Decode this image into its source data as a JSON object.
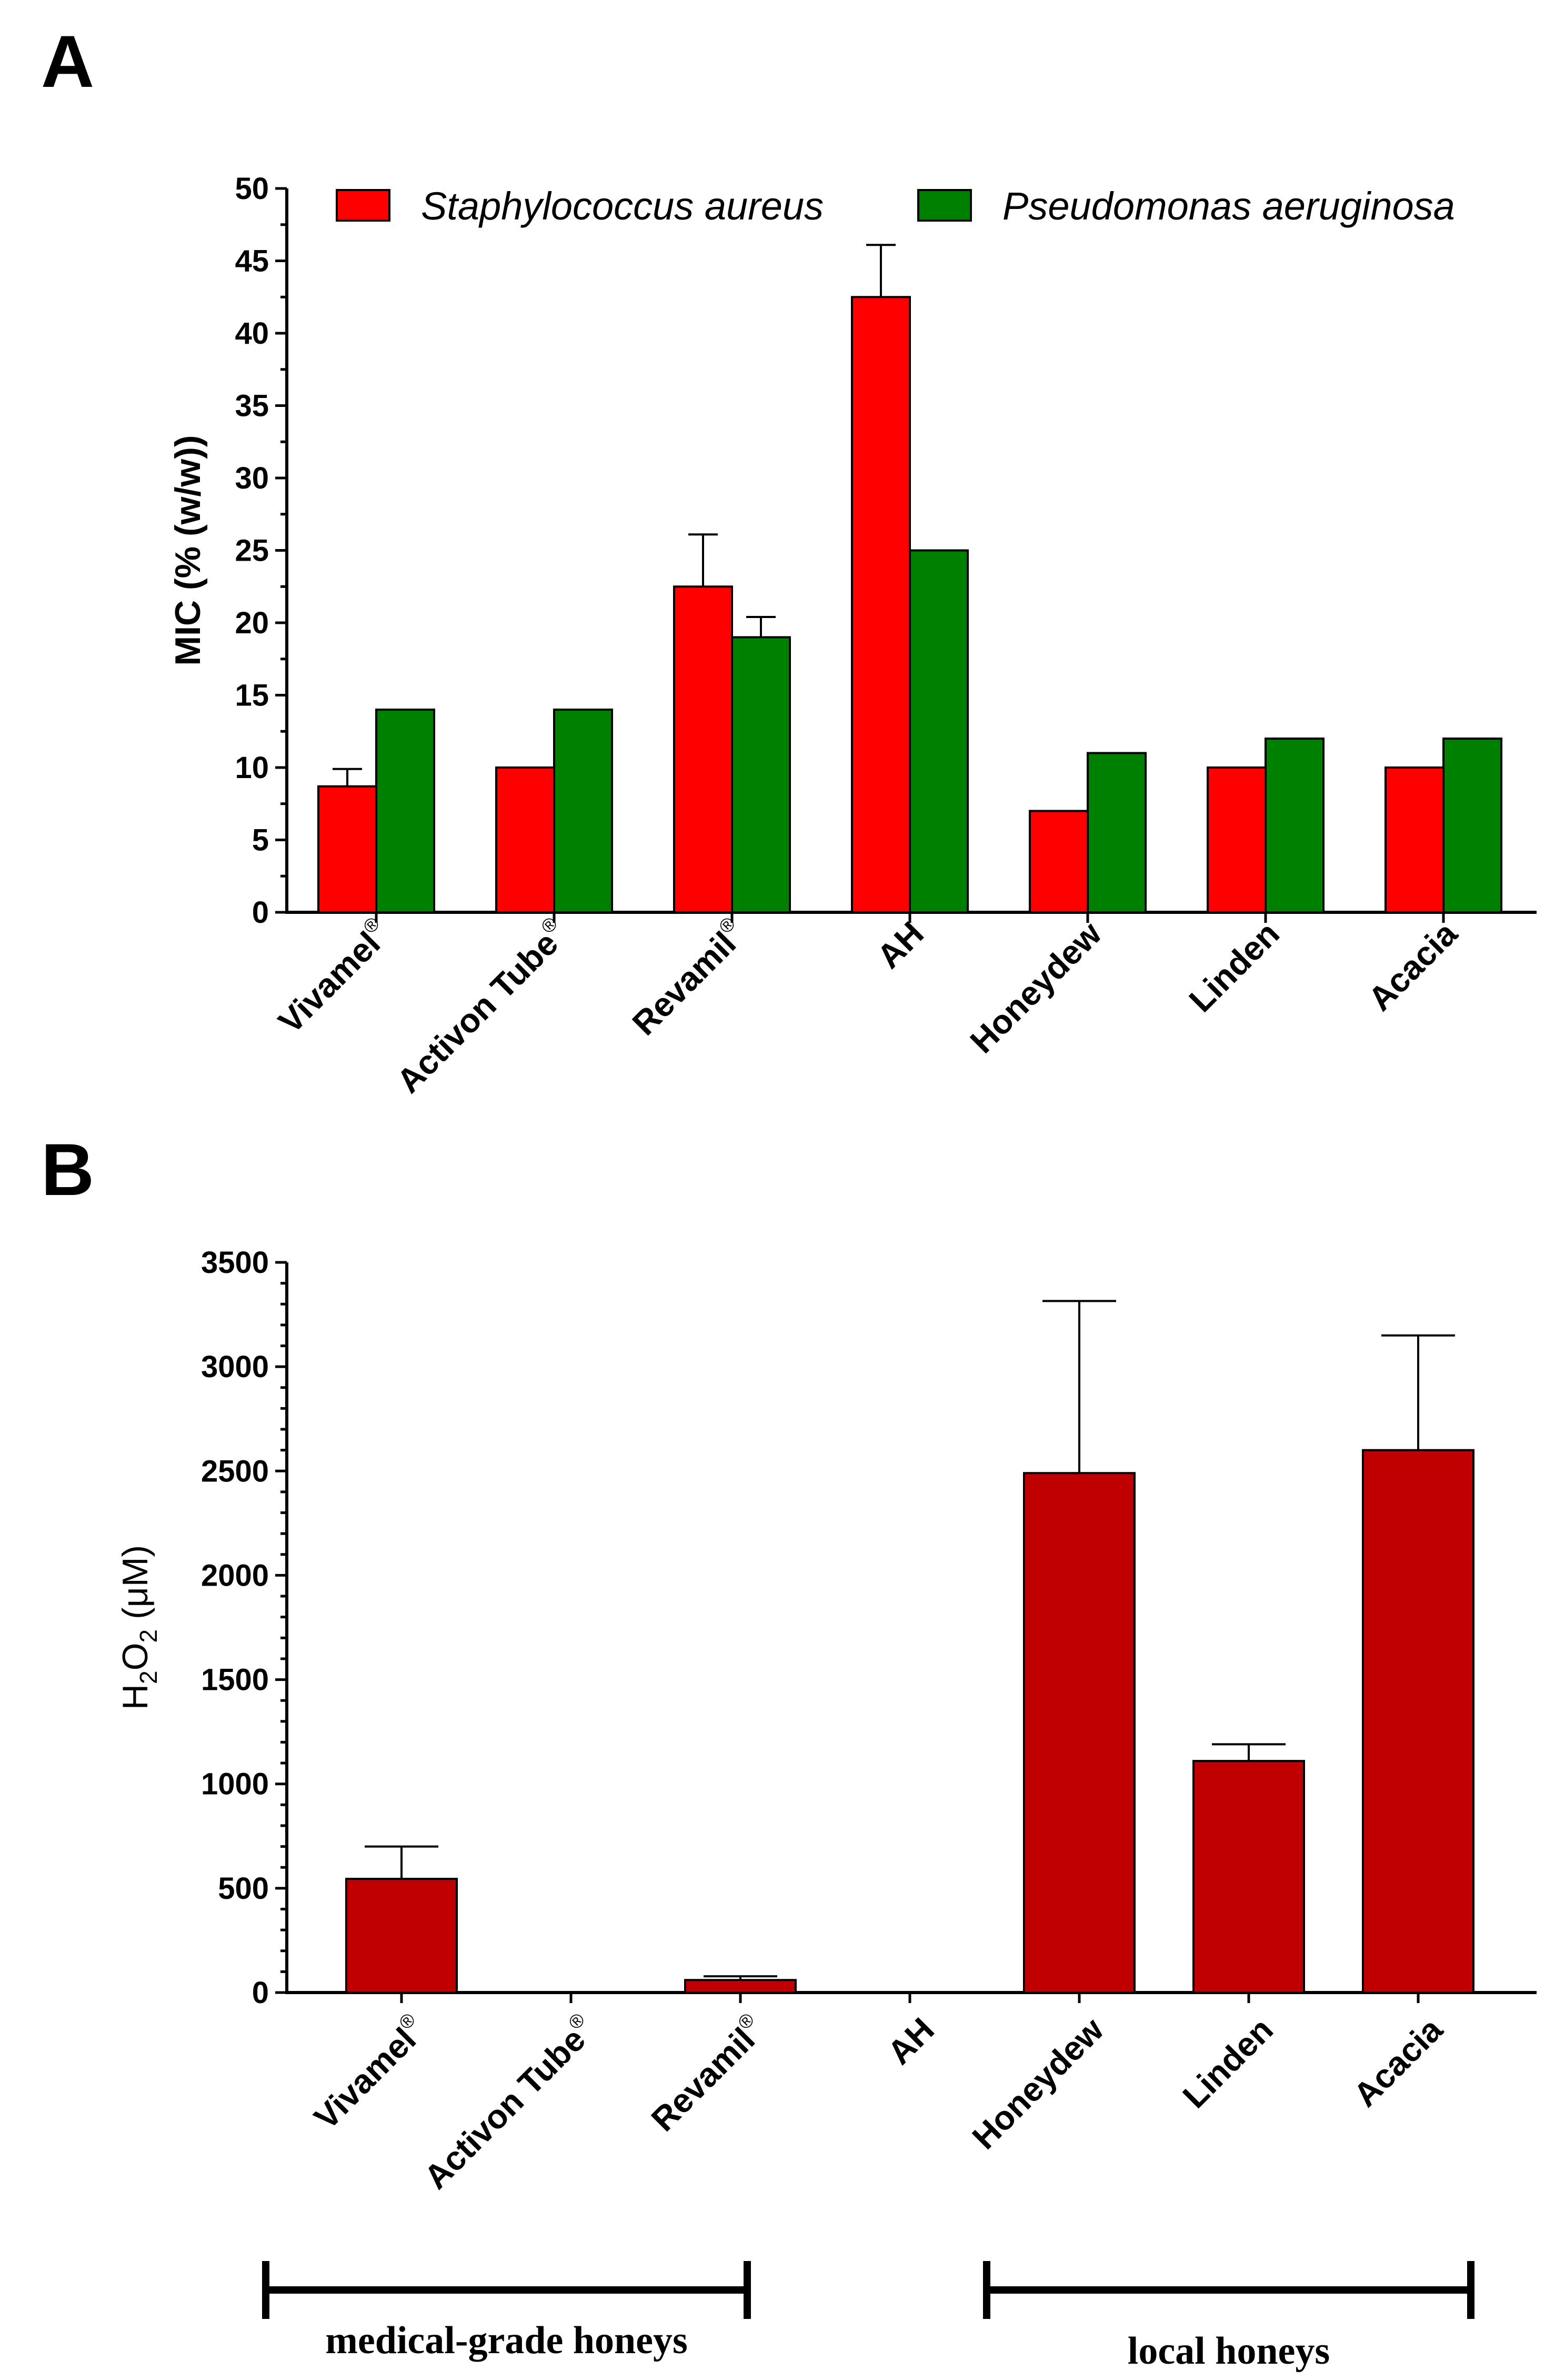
{
  "colors": {
    "staph": "#ff0000",
    "pseudo": "#008000",
    "h2o2": "#c00000",
    "ink": "#000000"
  },
  "chart_data": [
    {
      "panel": "A",
      "type": "bar",
      "title": "",
      "xlabel": "",
      "ylabel": "MIC (% (w/w))",
      "ylim": [
        0,
        50
      ],
      "yticks": [
        0,
        5,
        10,
        15,
        20,
        25,
        30,
        35,
        40,
        45,
        50
      ],
      "categories": [
        "Vivamel",
        "Activon Tube",
        "Revamil",
        "AH",
        "Honeydew",
        "Linden",
        "Acacia"
      ],
      "registered_mark": [
        true,
        true,
        true,
        false,
        false,
        false,
        false
      ],
      "registered_symbol": "®",
      "legend_position": "top",
      "series": [
        {
          "name": "Staphylococcus aureus",
          "values": [
            8.7,
            10,
            22.5,
            42.5,
            7,
            10,
            10
          ],
          "error": [
            1.2,
            0,
            3.6,
            3.6,
            0,
            0,
            0
          ]
        },
        {
          "name": "Pseudomonas aeruginosa",
          "values": [
            14,
            14,
            19,
            25,
            11,
            12,
            12
          ],
          "error": [
            0,
            0,
            1.4,
            0,
            0,
            0,
            0
          ]
        }
      ]
    },
    {
      "panel": "B",
      "type": "bar",
      "title": "",
      "xlabel": "",
      "ylabel": "H2O2 (μM)",
      "ylabel_parts": [
        "H",
        "2",
        "O",
        "2",
        " (μM)"
      ],
      "ylim": [
        0,
        3500
      ],
      "yticks": [
        0,
        500,
        1000,
        1500,
        2000,
        2500,
        3000,
        3500
      ],
      "categories": [
        "Vivamel",
        "Activon Tube",
        "Revamil",
        "AH",
        "Honeydew",
        "Linden",
        "Acacia"
      ],
      "registered_mark": [
        true,
        true,
        true,
        false,
        false,
        false,
        false
      ],
      "registered_symbol": "®",
      "series": [
        {
          "name": "H2O2",
          "values": [
            545,
            0,
            60,
            0,
            2490,
            1110,
            2600
          ],
          "error": [
            155,
            0,
            18,
            0,
            825,
            80,
            550
          ]
        }
      ],
      "groups": [
        {
          "label": "medical-grade honeys",
          "categories": [
            "Vivamel",
            "Activon Tube",
            "Revamil"
          ]
        },
        {
          "label": "local honeys",
          "categories": [
            "Honeydew",
            "Linden",
            "Acacia"
          ]
        }
      ]
    }
  ]
}
